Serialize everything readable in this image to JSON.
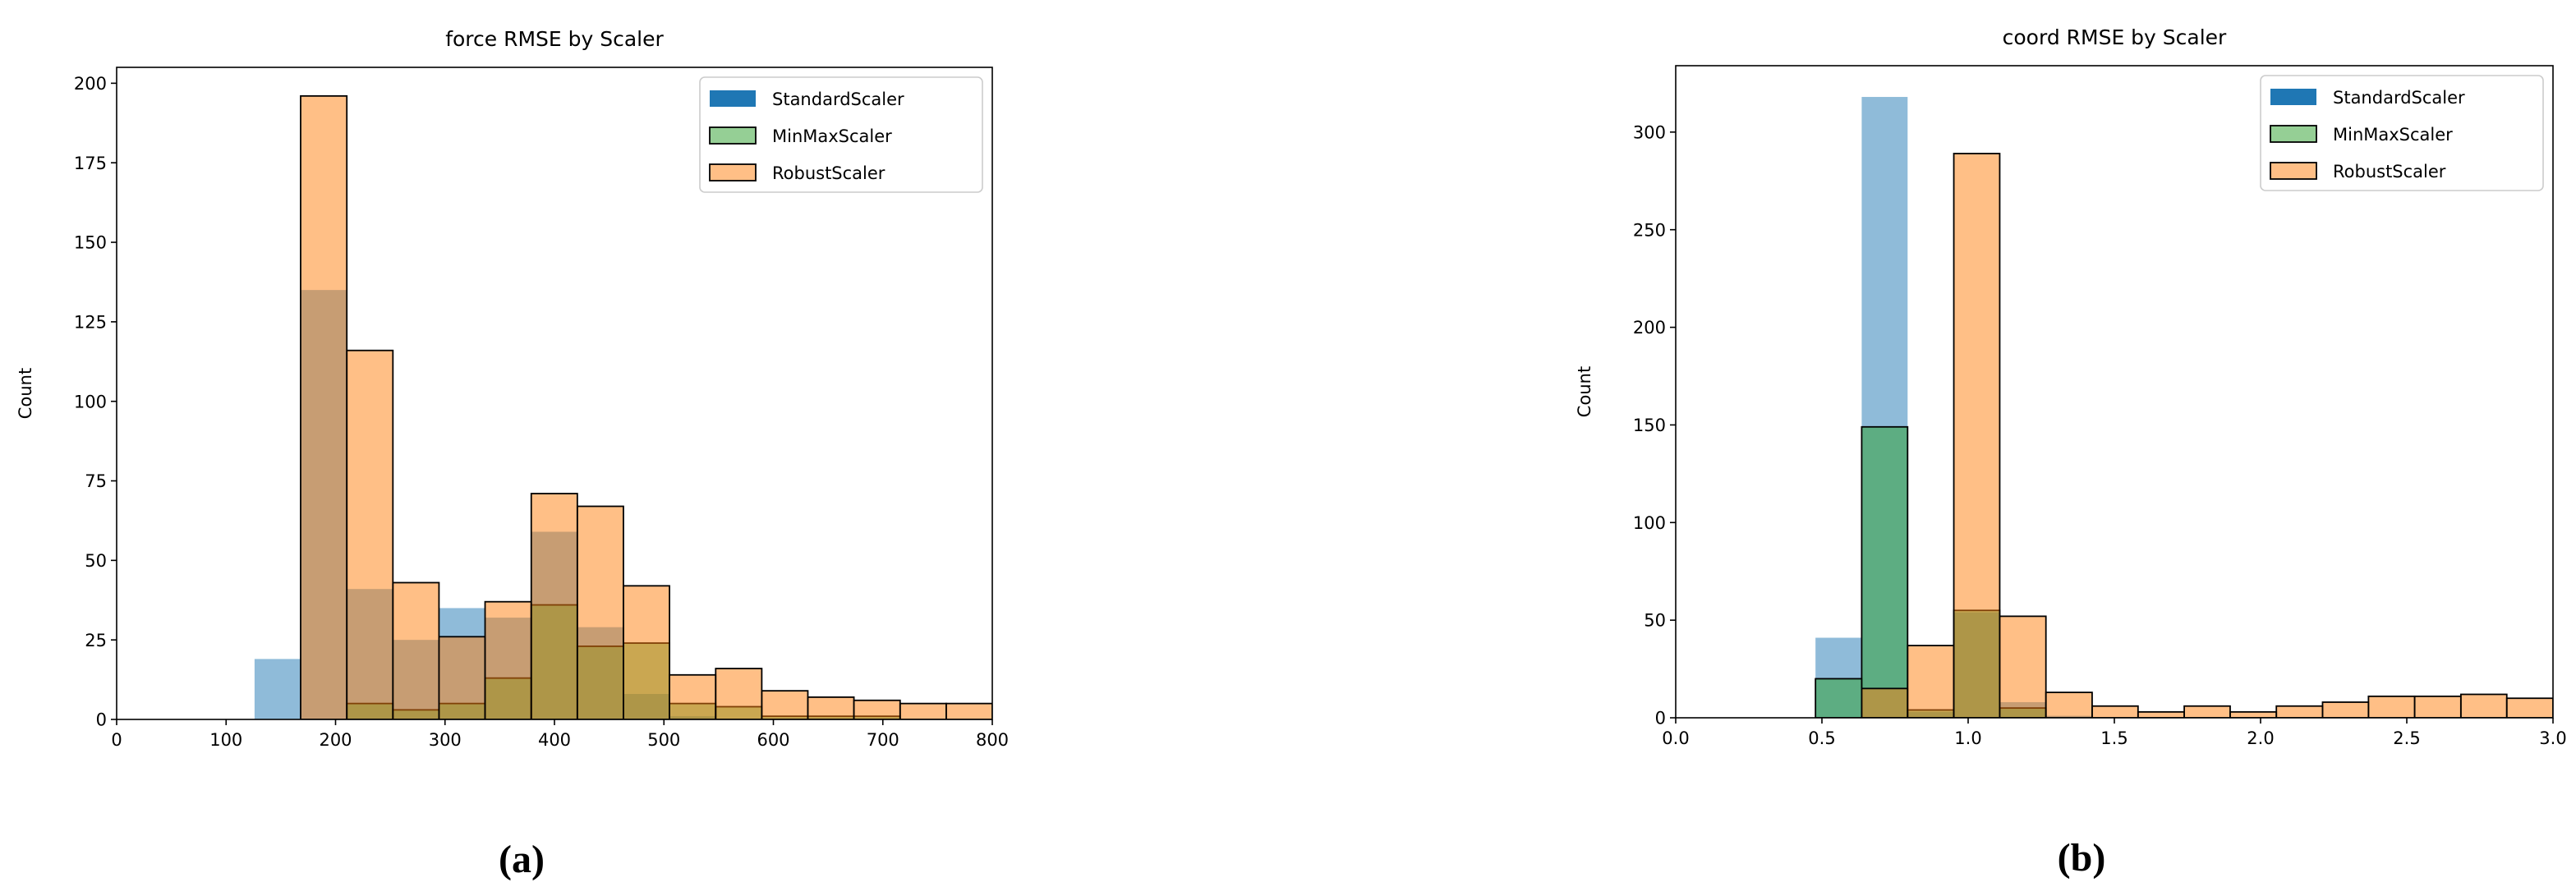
{
  "chart_data": [
    {
      "type": "histogram",
      "title": "force RMSE by Scaler",
      "ylabel": "Count",
      "caption": "(a)",
      "bins": [
        126,
        168.1,
        210.3,
        252.4,
        294.5,
        336.6,
        378.8,
        420.9,
        463,
        505.1,
        547.3,
        589.4,
        631.5,
        673.6,
        715.8,
        757.9,
        800
      ],
      "series": [
        {
          "name": "StandardScaler",
          "color": "#1f77b4",
          "values": [
            19,
            135,
            41,
            25,
            35,
            32,
            59,
            29,
            8,
            1,
            0,
            0,
            0,
            0,
            0,
            0
          ]
        },
        {
          "name": "MinMaxScaler",
          "color": "#2ca02c",
          "edgecolor": "#000000",
          "values": [
            0,
            0,
            5,
            3,
            5,
            13,
            36,
            23,
            24,
            5,
            4,
            1,
            1,
            1,
            0,
            0
          ]
        },
        {
          "name": "RobustScaler",
          "color": "#ff7f0e",
          "edgecolor": "#000000",
          "values": [
            0,
            196,
            116,
            43,
            26,
            37,
            71,
            67,
            42,
            14,
            16,
            9,
            7,
            6,
            5,
            5
          ]
        }
      ],
      "alpha": 0.5,
      "xlim": [
        0,
        800
      ],
      "xticks": [
        0,
        100,
        200,
        300,
        400,
        500,
        600,
        700,
        800
      ],
      "ylim": [
        0,
        205
      ],
      "yticks": [
        0,
        25,
        50,
        75,
        100,
        125,
        150,
        175,
        200
      ],
      "legend": "upper right"
    },
    {
      "type": "histogram",
      "title": "coord RMSE by Scaler",
      "ylabel": "Count",
      "caption": "(b)",
      "bins": [
        0.478,
        0.636,
        0.793,
        0.951,
        1.108,
        1.266,
        1.424,
        1.581,
        1.739,
        1.896,
        2.054,
        2.212,
        2.369,
        2.527,
        2.685,
        2.842,
        3.0
      ],
      "series": [
        {
          "name": "StandardScaler",
          "color": "#1f77b4",
          "values": [
            41,
            318,
            3,
            54,
            8,
            1,
            0,
            0,
            0,
            0,
            0,
            0,
            0,
            0,
            0,
            0
          ]
        },
        {
          "name": "MinMaxScaler",
          "color": "#2ca02c",
          "edgecolor": "#000000",
          "values": [
            20,
            149,
            4,
            55,
            5,
            0,
            0,
            0,
            0,
            0,
            0,
            0,
            0,
            0,
            0,
            0
          ]
        },
        {
          "name": "RobustScaler",
          "color": "#ff7f0e",
          "edgecolor": "#000000",
          "values": [
            0,
            15,
            37,
            289,
            52,
            13,
            6,
            3,
            6,
            3,
            6,
            8,
            11,
            11,
            12,
            10
          ]
        }
      ],
      "alpha": 0.5,
      "xlim": [
        0,
        3
      ],
      "xticks": [
        {
          "value": 0,
          "label": "0.0"
        },
        0.5,
        {
          "value": 1,
          "label": "1.0"
        },
        1.5,
        {
          "value": 2,
          "label": "2.0"
        },
        2.5,
        {
          "value": 3,
          "label": "3.0"
        }
      ],
      "ylim": [
        0,
        334
      ],
      "yticks": [
        0,
        50,
        100,
        150,
        200,
        250,
        300
      ],
      "legend": "upper right"
    }
  ]
}
